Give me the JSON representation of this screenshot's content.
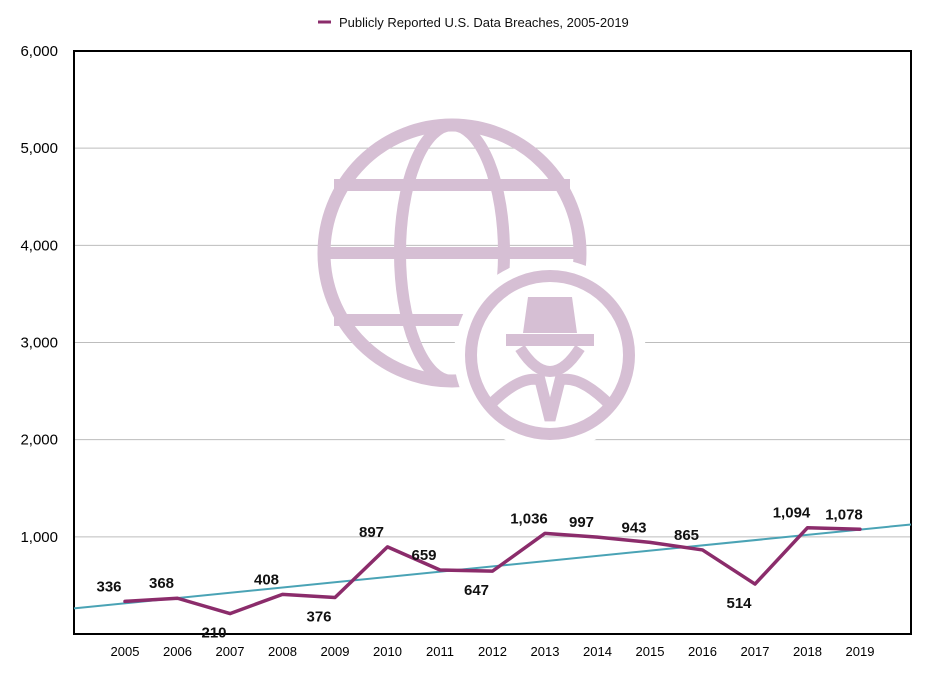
{
  "chart_data": {
    "type": "line",
    "title": "",
    "xlabel": "",
    "ylabel": "",
    "categories": [
      "2005",
      "2006",
      "2007",
      "2008",
      "2009",
      "2010",
      "2011",
      "2012",
      "2013",
      "2014",
      "2015",
      "2016",
      "2017",
      "2018",
      "2019"
    ],
    "series": [
      {
        "name": "Publicly Reported U.S. Data Breaches, 2005-2019",
        "values": [
          336,
          368,
          210,
          408,
          376,
          897,
          659,
          647,
          1036,
          997,
          943,
          865,
          514,
          1094,
          1078
        ],
        "color": "#8B2C6B"
      }
    ],
    "data_labels": [
      "336",
      "368",
      "210",
      "408",
      "376",
      "897",
      "659",
      "647",
      "1,036",
      "997",
      "943",
      "865",
      "514",
      "1,094",
      "1,078"
    ],
    "trendline": {
      "type": "linear",
      "color": "#4AA3B5"
    },
    "ylim": [
      0,
      6000
    ],
    "y_ticks": [
      1000,
      2000,
      3000,
      4000,
      5000,
      6000
    ],
    "y_tick_labels": [
      "1,000",
      "2,000",
      "3,000",
      "4,000",
      "5,000",
      "6,000"
    ],
    "grid": true,
    "legend_position": "top-center",
    "watermark_icon": "globe-spy-icon",
    "watermark_color": "#D6BFD4"
  }
}
